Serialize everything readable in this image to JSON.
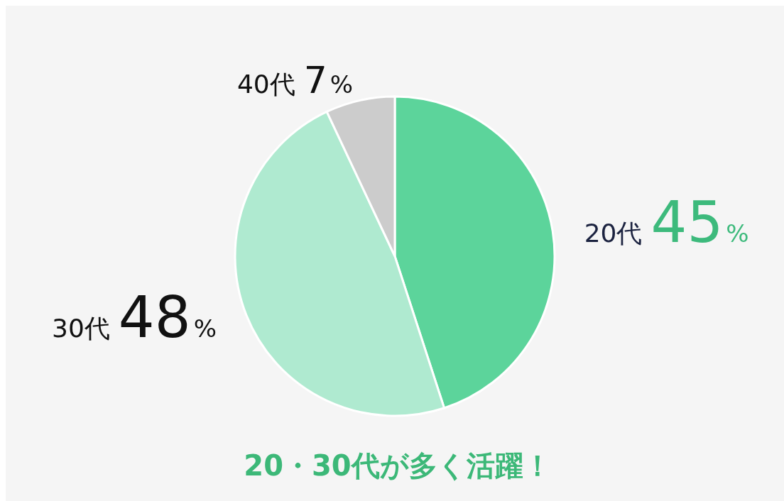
{
  "chart_data": {
    "type": "pie",
    "categories": [
      "20代",
      "30代",
      "40代"
    ],
    "values": [
      45,
      48,
      7
    ],
    "colors": [
      "#5cd49b",
      "#afead0",
      "#cccccc"
    ],
    "value_labels": [
      "45%",
      "48%",
      "7%"
    ],
    "annotations": [
      "20・30代が多く活躍！"
    ]
  }
}
